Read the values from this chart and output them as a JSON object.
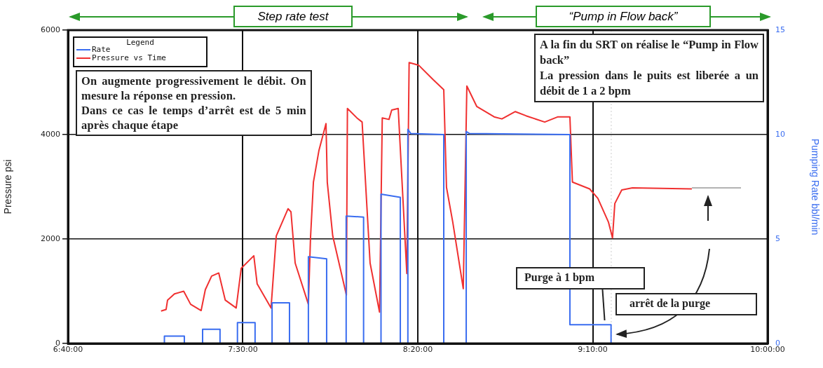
{
  "chart_data": {
    "type": "line",
    "ylabel": "Pressure psi",
    "y2label": "Pumping Rate bbl/min",
    "legend_title": "Legend",
    "legend": "top left",
    "grid": true,
    "xlim": [
      6.6667,
      10
    ],
    "xticks": [
      {
        "value": 6.6667,
        "label": "6:40:00"
      },
      {
        "value": 7.5,
        "label": "7:30:00"
      },
      {
        "value": 8.3333,
        "label": "8:20:00"
      },
      {
        "value": 9.1667,
        "label": "9:10:00"
      },
      {
        "value": 10,
        "label": "10:00:00"
      }
    ],
    "ylim": [
      0,
      6000
    ],
    "yticks": [
      0,
      2000,
      4000,
      6000
    ],
    "y2lim": [
      0,
      15
    ],
    "y2ticks": [
      0,
      5,
      10,
      15
    ],
    "series": [
      {
        "name": "Rate",
        "color": "#3a6df0",
        "axis": "y2",
        "x": [
          7.126,
          7.126,
          7.221,
          7.221,
          7.308,
          7.308,
          7.391,
          7.391,
          7.474,
          7.474,
          7.558,
          7.558,
          7.639,
          7.639,
          7.722,
          7.722,
          7.812,
          7.812,
          7.899,
          7.899,
          7.992,
          7.992,
          8.075,
          8.075,
          8.158,
          8.158,
          8.25,
          8.25,
          8.286,
          8.286,
          8.3,
          8.457,
          8.457,
          8.564,
          8.564,
          8.58,
          9.058,
          9.058,
          9.254,
          9.254
        ],
        "values": [
          0,
          0.35,
          0.35,
          0,
          0,
          0.68,
          0.68,
          0,
          0,
          1.0,
          1.0,
          0,
          0,
          1.95,
          1.95,
          0,
          0,
          4.15,
          4.05,
          0,
          0,
          6.1,
          6.05,
          0,
          0,
          7.15,
          7.0,
          0,
          0,
          10.25,
          10.05,
          10.0,
          0,
          0,
          10.15,
          10.05,
          10.0,
          0.9,
          0.9,
          0
        ]
      },
      {
        "name": "Pressure vs Time",
        "color": "#f03030",
        "x": [
          7.11,
          7.134,
          7.141,
          7.174,
          7.218,
          7.251,
          7.301,
          7.321,
          7.351,
          7.385,
          7.416,
          7.468,
          7.492,
          7.552,
          7.568,
          7.634,
          7.659,
          7.715,
          7.729,
          7.749,
          7.812,
          7.822,
          7.836,
          7.862,
          7.896,
          7.902,
          7.928,
          7.993,
          7.998,
          8.043,
          8.068,
          8.106,
          8.151,
          8.164,
          8.196,
          8.209,
          8.24,
          8.281,
          8.292,
          8.337,
          8.407,
          8.457,
          8.47,
          8.5,
          8.55,
          8.567,
          8.614,
          8.697,
          8.734,
          8.798,
          8.849,
          8.938,
          9.001,
          9.058,
          9.07,
          9.152,
          9.191,
          9.242,
          9.261,
          9.272,
          9.305,
          9.356,
          9.639
        ],
        "values": [
          620,
          650,
          830,
          950,
          1000,
          750,
          630,
          1030,
          1290,
          1350,
          830,
          680,
          1440,
          1680,
          1140,
          680,
          2060,
          2580,
          2520,
          1540,
          750,
          2010,
          3090,
          3690,
          4210,
          3090,
          2060,
          930,
          4500,
          4320,
          4240,
          1540,
          600,
          4320,
          4290,
          4470,
          4500,
          1340,
          5380,
          5330,
          5050,
          4860,
          2990,
          2320,
          1050,
          4930,
          4540,
          4340,
          4300,
          4440,
          4360,
          4240,
          4340,
          4340,
          3090,
          2960,
          2780,
          2320,
          2020,
          2680,
          2940,
          2980,
          2960
        ]
      }
    ],
    "ref_lines": [
      {
        "axis": "x",
        "value": 9.255,
        "label": null,
        "color": "#cccccc",
        "line_style": "dotted"
      }
    ],
    "annotations": [
      "Step rate test",
      "“Pump in Flow back”",
      "On augmente progressivement le débit. On mesure la réponse en pression.\nDans ce cas le temps d’arrêt est de 5 min après chaque étape",
      "A la fin du SRT on réalise le “Pump in Flow back”\nLa pression dans le puits est liberée a un débit de 1 a 2 bpm",
      "Purge à 1 bpm",
      "arrêt de la purge"
    ]
  }
}
